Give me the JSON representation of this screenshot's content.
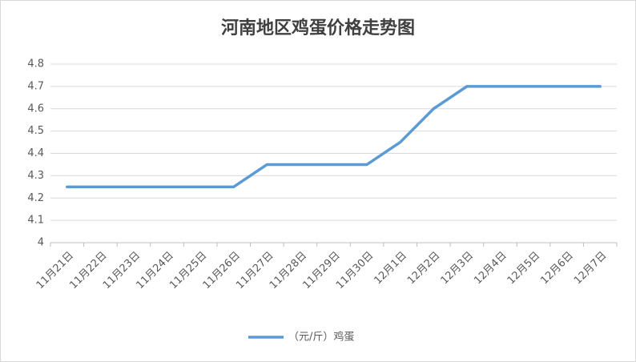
{
  "chart_data": {
    "type": "line",
    "title": "河南地区鸡蛋价格走势图",
    "categories": [
      "11月21日",
      "11月22日",
      "11月23日",
      "11月24日",
      "11月25日",
      "11月26日",
      "11月27日",
      "11月28日",
      "11月29日",
      "11月30日",
      "12月1日",
      "12月2日",
      "12月3日",
      "12月4日",
      "12月5日",
      "12月6日",
      "12月7日"
    ],
    "series": [
      {
        "name": "（元/斤）鸡蛋",
        "color": "#5b9bd5",
        "values": [
          4.25,
          4.25,
          4.25,
          4.25,
          4.25,
          4.25,
          4.35,
          4.35,
          4.35,
          4.35,
          4.45,
          4.6,
          4.7,
          4.7,
          4.7,
          4.7,
          4.7
        ]
      }
    ],
    "ylim": [
      4,
      4.8
    ],
    "yticks": [
      4,
      4.1,
      4.2,
      4.3,
      4.4,
      4.5,
      4.6,
      4.7,
      4.8
    ],
    "grid": true,
    "legend": "bottom"
  }
}
